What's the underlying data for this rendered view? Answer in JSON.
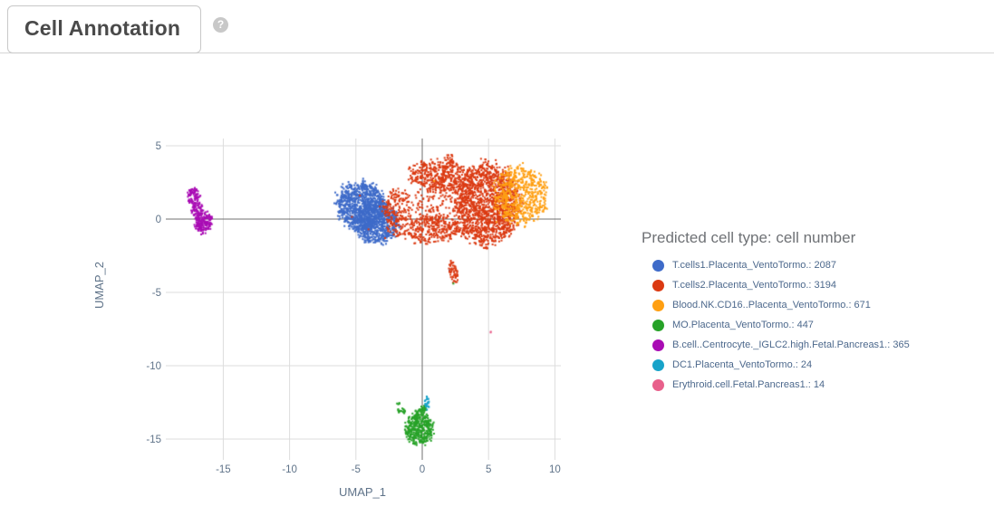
{
  "header": {
    "title": "Cell Annotation",
    "help_icon": "?"
  },
  "legend": {
    "title": "Predicted cell type: cell number"
  },
  "colors": {
    "grid": "#dcdcdc",
    "zero_line": "#707070",
    "tick_text": "#5f7389",
    "axis_title_text": "#5f7389",
    "legend_title_text": "#6f7276",
    "legend_item_text": "#4c688c",
    "tab_text": "#4a4a4a",
    "tab_border": "#c8c8c8"
  },
  "chart_data": {
    "type": "scatter",
    "title": "",
    "xlabel": "UMAP_1",
    "ylabel": "UMAP_2",
    "xlim": [
      -19.8,
      10.6
    ],
    "ylim": [
      -16.4,
      5.6
    ],
    "x_ticks": [
      -15,
      -10,
      -5,
      0,
      5,
      10
    ],
    "y_ticks": [
      5,
      0,
      -5,
      -10,
      -15
    ],
    "grid": true,
    "zero_lines": true,
    "legend_position": "right",
    "point_size": 2,
    "series": [
      {
        "name": "T.cells1.Placenta_VentoTormo.",
        "count": 2087,
        "color": "#3e6bc9",
        "blobs": [
          {
            "cx": -4.6,
            "cy": 0.9,
            "rx": 1.9,
            "ry": 1.65,
            "n": 850,
            "rot": -20
          },
          {
            "cx": -3.5,
            "cy": -0.2,
            "rx": 1.7,
            "ry": 1.45,
            "n": 750,
            "rot": -15
          }
        ],
        "outliers": [
          [
            2.05,
            -3.5
          ],
          [
            -16.85,
            0.3
          ]
        ]
      },
      {
        "name": "T.cells2.Placenta_VentoTormo.",
        "count": 3194,
        "color": "#db3a12",
        "blobs": [
          {
            "cx": 4.9,
            "cy": 1.0,
            "rx": 2.4,
            "ry": 2.8,
            "n": 1500,
            "rot": -8
          },
          {
            "cx": 1.4,
            "cy": 2.9,
            "rx": 2.4,
            "ry": 1.05,
            "n": 450,
            "rot": -5
          },
          {
            "cx": 0.8,
            "cy": -0.7,
            "rx": 2.3,
            "ry": 0.95,
            "n": 320,
            "rot": 5
          },
          {
            "cx": 1.1,
            "cy": 1.1,
            "rx": 2.0,
            "ry": 1.7,
            "n": 140,
            "rot": 0
          },
          {
            "cx": -1.9,
            "cy": 0.5,
            "rx": 1.1,
            "ry": 1.6,
            "n": 200,
            "rot": -10
          },
          {
            "cx": 2.0,
            "cy": 4.1,
            "rx": 0.35,
            "ry": 0.45,
            "n": 25,
            "rot": 0
          },
          {
            "cx": 2.35,
            "cy": -3.55,
            "rx": 0.32,
            "ry": 0.75,
            "n": 55,
            "rot": 8
          }
        ],
        "outliers": [
          [
            -4.7,
            1.6
          ],
          [
            -5.3,
            0.15
          ],
          [
            -4.05,
            -0.7
          ],
          [
            -3.2,
            0.85
          ],
          [
            -2.8,
            -1.3
          ],
          [
            -1.05,
            -14.35
          ]
        ]
      },
      {
        "name": "Blood.NK.CD16..Placenta_VentoTormo.",
        "count": 671,
        "color": "#ff9f12",
        "blobs": [
          {
            "cx": 7.4,
            "cy": 1.6,
            "rx": 1.95,
            "ry": 2.0,
            "n": 620,
            "rot": 15
          }
        ],
        "outliers": [
          [
            0.9,
            2.6
          ],
          [
            5.6,
            -0.2
          ]
        ]
      },
      {
        "name": "MO.Placenta_VentoTormo.",
        "count": 447,
        "color": "#27a228",
        "blobs": [
          {
            "cx": -0.25,
            "cy": -14.3,
            "rx": 1.05,
            "ry": 1.15,
            "n": 400,
            "rot": 0
          },
          {
            "cx": -1.55,
            "cy": -13.1,
            "rx": 0.32,
            "ry": 0.22,
            "n": 18,
            "rot": -30
          },
          {
            "cx": -1.8,
            "cy": -12.55,
            "rx": 0.12,
            "ry": 0.1,
            "n": 5,
            "rot": 0
          },
          {
            "cx": 0.05,
            "cy": -12.95,
            "rx": 0.3,
            "ry": 0.3,
            "n": 30,
            "rot": 0
          }
        ],
        "outliers": [
          [
            2.35,
            -4.4
          ]
        ]
      },
      {
        "name": "B.cell..Centrocyte._IGLC2.high.Fetal.Pancreas1.",
        "count": 365,
        "color": "#a90cb4",
        "blobs": [
          {
            "cx": -17.25,
            "cy": 1.6,
            "rx": 0.5,
            "ry": 0.55,
            "n": 80,
            "rot": -15
          },
          {
            "cx": -16.95,
            "cy": 0.65,
            "rx": 0.45,
            "ry": 0.6,
            "n": 70,
            "rot": -20
          },
          {
            "cx": -16.5,
            "cy": -0.25,
            "rx": 0.65,
            "ry": 0.8,
            "n": 170,
            "rot": -20
          }
        ],
        "outliers": []
      },
      {
        "name": "DC1.Placenta_VentoTormo.",
        "count": 24,
        "color": "#18a3c9",
        "blobs": [
          {
            "cx": 0.35,
            "cy": -12.5,
            "rx": 0.16,
            "ry": 0.5,
            "n": 22,
            "rot": 10
          }
        ],
        "outliers": []
      },
      {
        "name": "Erythroid.cell.Fetal.Pancreas1.",
        "count": 14,
        "color": "#e8608b",
        "blobs": [
          {
            "cx": 5.15,
            "cy": -7.7,
            "rx": 0.05,
            "ry": 0.05,
            "n": 2,
            "rot": 0
          }
        ],
        "outliers": []
      }
    ]
  }
}
